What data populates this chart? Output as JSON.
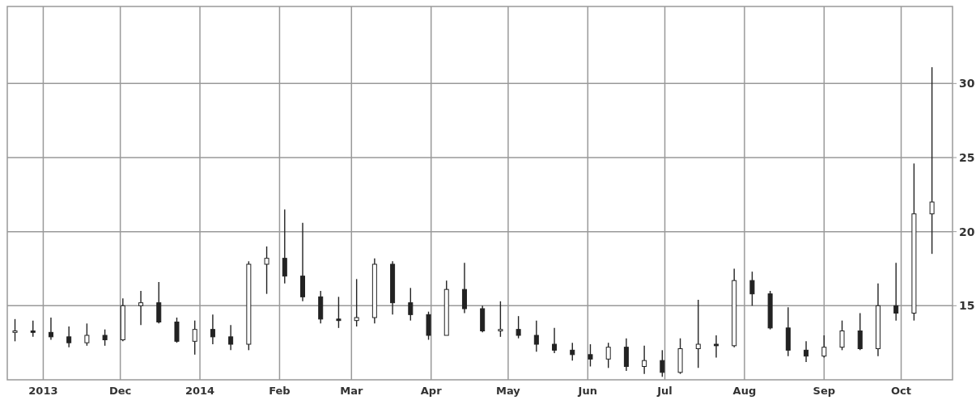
{
  "chart_data": {
    "type": "candlestick",
    "color": "#222222",
    "grid": true,
    "x": [
      "2013-10-21",
      "2013-10-28",
      "2013-11-04",
      "2013-11-11",
      "2013-11-18",
      "2013-11-25",
      "2013-12-02",
      "2013-12-09",
      "2013-12-16",
      "2013-12-23",
      "2013-12-30",
      "2014-01-06",
      "2014-01-13",
      "2014-01-20",
      "2014-01-27",
      "2014-02-03",
      "2014-02-10",
      "2014-02-17",
      "2014-02-24",
      "2014-03-03",
      "2014-03-10",
      "2014-03-17",
      "2014-03-24",
      "2014-03-31",
      "2014-04-07",
      "2014-04-14",
      "2014-04-21",
      "2014-04-28",
      "2014-05-05",
      "2014-05-12",
      "2014-05-19",
      "2014-05-26",
      "2014-06-02",
      "2014-06-09",
      "2014-06-16",
      "2014-06-23",
      "2014-06-30",
      "2014-07-07",
      "2014-07-14",
      "2014-07-21",
      "2014-07-28",
      "2014-08-04",
      "2014-08-11",
      "2014-08-18",
      "2014-08-25",
      "2014-09-01",
      "2014-09-08",
      "2014-09-15",
      "2014-09-22",
      "2014-09-29",
      "2014-10-06",
      "2014-10-13"
    ],
    "ohlc": [
      [
        13.2,
        14.1,
        12.6,
        13.3
      ],
      [
        13.3,
        14.0,
        12.9,
        13.2
      ],
      [
        13.2,
        14.2,
        12.7,
        12.9
      ],
      [
        12.9,
        13.6,
        12.2,
        12.5
      ],
      [
        12.5,
        13.8,
        12.3,
        13.0
      ],
      [
        13.0,
        13.4,
        12.3,
        12.7
      ],
      [
        12.7,
        15.5,
        12.6,
        15.0
      ],
      [
        15.0,
        16.0,
        13.7,
        15.2
      ],
      [
        15.2,
        16.6,
        13.8,
        13.9
      ],
      [
        13.9,
        14.2,
        12.5,
        12.6
      ],
      [
        12.6,
        14.0,
        11.7,
        13.4
      ],
      [
        13.4,
        14.4,
        12.4,
        12.9
      ],
      [
        12.9,
        13.7,
        12.0,
        12.4
      ],
      [
        12.4,
        18.0,
        12.0,
        17.8
      ],
      [
        17.8,
        19.0,
        15.8,
        18.2
      ],
      [
        18.2,
        21.5,
        16.5,
        17.0
      ],
      [
        17.0,
        20.6,
        15.3,
        15.6
      ],
      [
        15.6,
        16.0,
        13.8,
        14.1
      ],
      [
        14.1,
        15.6,
        13.5,
        14.0
      ],
      [
        14.0,
        16.8,
        13.6,
        14.2
      ],
      [
        14.2,
        18.2,
        13.8,
        17.8
      ],
      [
        17.8,
        18.0,
        14.4,
        15.2
      ],
      [
        15.2,
        16.2,
        14.0,
        14.4
      ],
      [
        14.4,
        14.6,
        12.7,
        13.0
      ],
      [
        13.0,
        16.7,
        13.0,
        16.1
      ],
      [
        16.1,
        17.9,
        14.5,
        14.8
      ],
      [
        14.8,
        15.0,
        13.2,
        13.3
      ],
      [
        13.3,
        15.3,
        12.9,
        13.4
      ],
      [
        13.4,
        14.3,
        12.8,
        13.0
      ],
      [
        13.0,
        14.0,
        11.9,
        12.4
      ],
      [
        12.4,
        13.5,
        11.8,
        12.0
      ],
      [
        12.0,
        12.5,
        11.3,
        11.7
      ],
      [
        11.7,
        12.4,
        10.9,
        11.4
      ],
      [
        11.4,
        12.5,
        10.8,
        12.2
      ],
      [
        12.2,
        12.8,
        10.6,
        10.9
      ],
      [
        10.9,
        12.3,
        10.4,
        11.3
      ],
      [
        11.3,
        12.0,
        10.2,
        10.5
      ],
      [
        10.5,
        12.8,
        10.4,
        12.1
      ],
      [
        12.1,
        15.4,
        10.8,
        12.4
      ],
      [
        12.4,
        13.0,
        11.5,
        12.3
      ],
      [
        12.3,
        17.5,
        12.2,
        16.7
      ],
      [
        16.7,
        17.3,
        15.0,
        15.8
      ],
      [
        15.8,
        16.0,
        13.4,
        13.5
      ],
      [
        13.5,
        14.9,
        11.6,
        12.0
      ],
      [
        12.0,
        12.6,
        11.2,
        11.6
      ],
      [
        11.6,
        13.0,
        11.5,
        12.2
      ],
      [
        12.2,
        14.0,
        12.0,
        13.3
      ],
      [
        13.3,
        14.5,
        12.0,
        12.1
      ],
      [
        12.1,
        16.5,
        11.6,
        15.0
      ],
      [
        15.0,
        17.9,
        14.0,
        14.5
      ],
      [
        14.5,
        24.6,
        14.0,
        21.2
      ],
      [
        21.2,
        31.1,
        18.5,
        22.0
      ]
    ],
    "xlim": [
      "2013-10-18",
      "2014-10-21"
    ],
    "xticks": [
      {
        "value": "2013-11-01",
        "label": "2013"
      },
      {
        "value": "2013-12-01",
        "label": "Dec"
      },
      {
        "value": "2014-01-01",
        "label": "2014"
      },
      {
        "value": "2014-02-01",
        "label": "Feb"
      },
      {
        "value": "2014-03-01",
        "label": "Mar"
      },
      {
        "value": "2014-04-01",
        "label": "Apr"
      },
      {
        "value": "2014-05-01",
        "label": "May"
      },
      {
        "value": "2014-06-01",
        "label": "Jun"
      },
      {
        "value": "2014-07-01",
        "label": "Jul"
      },
      {
        "value": "2014-08-01",
        "label": "Aug"
      },
      {
        "value": "2014-09-01",
        "label": "Sep"
      },
      {
        "value": "2014-10-01",
        "label": "Oct"
      }
    ],
    "ylim": [
      10,
      35.2
    ],
    "yticks": [
      15,
      20,
      25,
      30
    ]
  }
}
